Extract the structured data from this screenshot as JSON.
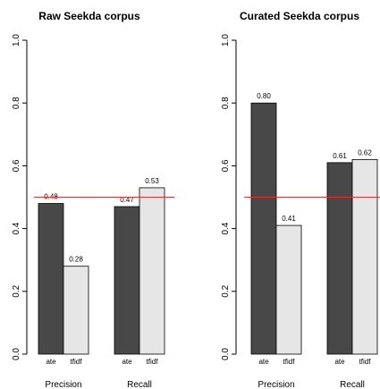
{
  "chart_data": [
    {
      "type": "bar",
      "title": "Raw Seekda corpus",
      "categories": [
        "Precision",
        "Recall"
      ],
      "bar_labels": [
        "ate",
        "tfidf"
      ],
      "series": [
        {
          "name": "ate",
          "values": [
            0.48,
            0.47
          ],
          "labels": [
            "0.48",
            "0.47"
          ]
        },
        {
          "name": "tfidf",
          "values": [
            0.28,
            0.53
          ],
          "labels": [
            "0.28",
            "0.53"
          ]
        }
      ],
      "ylim": [
        0,
        1
      ],
      "yticks": [
        "0.0",
        "0.2",
        "0.4",
        "0.6",
        "0.8",
        "1.0"
      ],
      "reference_line": 0.5,
      "grid": false
    },
    {
      "type": "bar",
      "title": "Curated Seekda corpus",
      "categories": [
        "Precision",
        "Recall"
      ],
      "bar_labels": [
        "ate",
        "tfidf"
      ],
      "series": [
        {
          "name": "ate",
          "values": [
            0.8,
            0.61
          ],
          "labels": [
            "0.80",
            "0.61"
          ]
        },
        {
          "name": "tfidf",
          "values": [
            0.41,
            0.62
          ],
          "labels": [
            "0.41",
            "0.62"
          ]
        }
      ],
      "ylim": [
        0,
        1
      ],
      "yticks": [
        "0.0",
        "0.2",
        "0.4",
        "0.6",
        "0.8",
        "1.0"
      ],
      "reference_line": 0.5,
      "grid": false
    }
  ],
  "colors": {
    "ate": "#484848",
    "tfidf": "#e6e6e6",
    "reference_line": "#e03030",
    "axis": "#000000"
  }
}
